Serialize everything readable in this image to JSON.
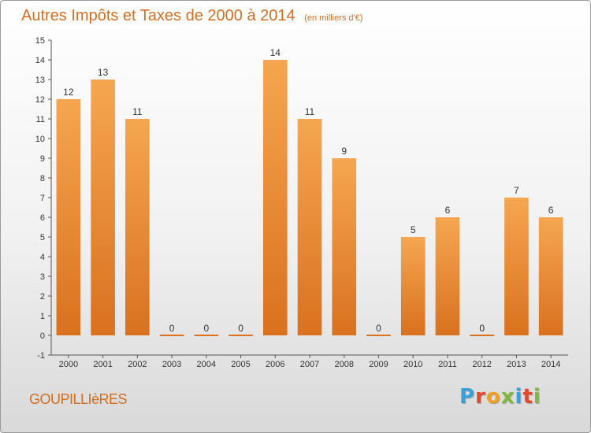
{
  "header": {
    "title": "Autres Impôts et Taxes de 2000 à 2014",
    "subtitle": "(en milliers d'€)"
  },
  "footer": {
    "commune": "GOUPILLIèRES",
    "logo_letters": [
      "P",
      "r",
      "o",
      "x",
      "i",
      "t",
      "i"
    ],
    "logo_colors": [
      "#3aa0d8",
      "#e8452c",
      "#f2a01c",
      "#7fb83a",
      "#3aa0d8",
      "#e8452c",
      "#7fb83a"
    ]
  },
  "chart_data": {
    "type": "bar",
    "categories": [
      "2000",
      "2001",
      "2002",
      "2003",
      "2004",
      "2005",
      "2006",
      "2007",
      "2008",
      "2009",
      "2010",
      "2011",
      "2012",
      "2013",
      "2014"
    ],
    "values": [
      12,
      13,
      11,
      0,
      0,
      0,
      14,
      11,
      9,
      0,
      5,
      6,
      0,
      7,
      6
    ],
    "ylim": [
      -1,
      15
    ],
    "yticks": [
      -1,
      0,
      1,
      2,
      3,
      4,
      5,
      6,
      7,
      8,
      9,
      10,
      11,
      12,
      13,
      14,
      15
    ],
    "bar_color": "#f0963e",
    "grid": false
  }
}
